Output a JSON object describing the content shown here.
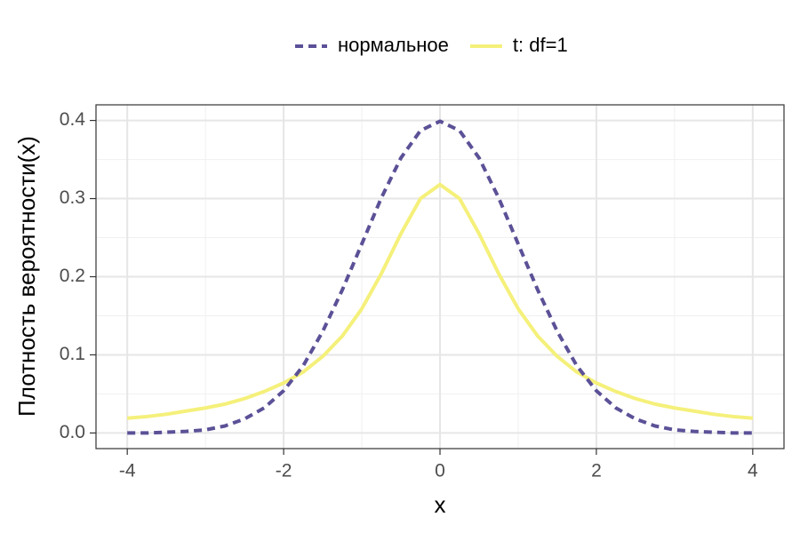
{
  "chart_data": {
    "type": "line",
    "x_label": "x",
    "y_label": "Плотность вероятности(x)",
    "x": [
      -4,
      -3.75,
      -3.5,
      -3.25,
      -3,
      -2.75,
      -2.5,
      -2.25,
      -2,
      -1.75,
      -1.5,
      -1.25,
      -1,
      -0.75,
      -0.5,
      -0.25,
      0,
      0.25,
      0.5,
      0.75,
      1,
      1.25,
      1.5,
      1.75,
      2,
      2.25,
      2.5,
      2.75,
      3,
      3.25,
      3.5,
      3.75,
      4
    ],
    "series": [
      {
        "name": "нормальное",
        "color": "#5b5197",
        "dash": true,
        "values": [
          0.0,
          0.0,
          0.001,
          0.002,
          0.004,
          0.009,
          0.018,
          0.032,
          0.054,
          0.086,
          0.13,
          0.183,
          0.242,
          0.301,
          0.352,
          0.387,
          0.399,
          0.387,
          0.352,
          0.301,
          0.242,
          0.183,
          0.13,
          0.086,
          0.054,
          0.032,
          0.018,
          0.009,
          0.004,
          0.002,
          0.001,
          0.0,
          0.0
        ]
      },
      {
        "name": "t: df=1",
        "color": "#f5f07a",
        "dash": false,
        "values": [
          0.019,
          0.021,
          0.024,
          0.028,
          0.032,
          0.037,
          0.044,
          0.053,
          0.064,
          0.078,
          0.098,
          0.124,
          0.159,
          0.204,
          0.255,
          0.3,
          0.318,
          0.3,
          0.255,
          0.204,
          0.159,
          0.124,
          0.098,
          0.078,
          0.064,
          0.053,
          0.044,
          0.037,
          0.032,
          0.028,
          0.024,
          0.021,
          0.019
        ]
      }
    ],
    "xlim": [
      -4.4,
      4.4
    ],
    "ylim": [
      -0.02,
      0.42
    ],
    "xticks": [
      -4,
      -2,
      0,
      2,
      4
    ],
    "yticks": [
      {
        "value": 0,
        "label": "0.0"
      },
      0.1,
      0.2,
      0.3,
      0.4
    ],
    "x_minor_ticks": [
      -3,
      -1,
      1,
      3
    ],
    "y_minor_ticks": [
      0.05,
      0.15,
      0.25,
      0.35
    ],
    "grid": true,
    "legend": "top"
  }
}
